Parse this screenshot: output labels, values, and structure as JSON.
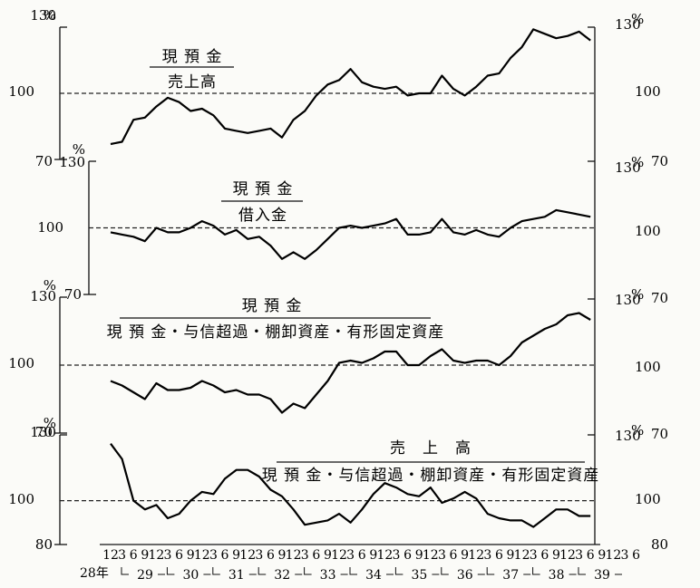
{
  "chart_data": {
    "type": "line",
    "x_labels": [
      "12",
      "3",
      "6",
      "9",
      "12",
      "3",
      "6",
      "9",
      "12",
      "3",
      "6",
      "9",
      "12",
      "3",
      "6",
      "9",
      "12",
      "3",
      "6",
      "9",
      "12",
      "3",
      "6",
      "9",
      "12",
      "3",
      "6",
      "9",
      "12",
      "3",
      "6",
      "9",
      "12",
      "3",
      "6",
      "9",
      "12",
      "3",
      "6",
      "9",
      "12",
      "3",
      "6",
      "9",
      "12",
      "3",
      "6"
    ],
    "year_labels": [
      "28年",
      "29",
      "30",
      "31",
      "32",
      "33",
      "34",
      "35",
      "36",
      "37",
      "38",
      "39"
    ],
    "panels": [
      {
        "id": "p1",
        "title_numerator": "現 預 金",
        "title_denominator": "売上高",
        "ylim": [
          70,
          130
        ],
        "y_ticks_left": [
          "130",
          "100",
          "70"
        ],
        "y_ticks_right": [
          "130",
          "100",
          "70"
        ],
        "unit": "%",
        "reference": 100,
        "values": [
          77,
          78,
          88,
          89,
          94,
          98,
          96,
          92,
          93,
          90,
          84,
          83,
          82,
          83,
          84,
          80,
          88,
          92,
          99,
          104,
          106,
          111,
          105,
          103,
          102,
          103,
          99,
          100,
          100,
          108,
          102,
          99,
          103,
          108,
          109,
          116,
          121,
          129,
          127,
          125,
          126,
          128,
          124
        ]
      },
      {
        "id": "p2",
        "title_numerator": "現 預 金",
        "title_denominator": "借入金",
        "ylim": [
          70,
          130
        ],
        "y_ticks_left": [
          "130",
          "100",
          "70"
        ],
        "y_ticks_right": [
          "130",
          "100",
          "70"
        ],
        "unit": "%",
        "reference": 100,
        "values": [
          98,
          97,
          96,
          94,
          100,
          98,
          98,
          100,
          103,
          101,
          97,
          99,
          95,
          96,
          92,
          86,
          89,
          86,
          90,
          95,
          100,
          101,
          100,
          101,
          102,
          104,
          97,
          97,
          98,
          104,
          98,
          97,
          99,
          97,
          96,
          100,
          103,
          104,
          105,
          108,
          107,
          106,
          105
        ]
      },
      {
        "id": "p3",
        "title_numerator": "現 預 金",
        "title_denominator": "現 預 金・与信超過・棚卸資産・有形固定資産",
        "ylim": [
          70,
          130
        ],
        "y_ticks_left": [
          "130",
          "100",
          "70"
        ],
        "y_ticks_right": [
          "130",
          "100",
          "70"
        ],
        "unit": "%",
        "reference": 100,
        "values": [
          93,
          91,
          88,
          85,
          92,
          89,
          89,
          90,
          93,
          91,
          88,
          89,
          87,
          87,
          85,
          79,
          83,
          81,
          87,
          93,
          101,
          102,
          101,
          103,
          106,
          106,
          100,
          100,
          104,
          107,
          102,
          101,
          102,
          102,
          100,
          104,
          110,
          113,
          116,
          118,
          122,
          123,
          120
        ]
      },
      {
        "id": "p4",
        "title_numerator": "売　上　高",
        "title_denominator": "現 預 金・与信超過・棚卸資産・有形固定資産",
        "ylim": [
          80,
          130
        ],
        "y_ticks_left": [
          "130",
          "100",
          "80"
        ],
        "y_ticks_right": [
          "130",
          "100",
          "80"
        ],
        "unit": "%",
        "reference": 100,
        "values": [
          126,
          119,
          100,
          96,
          98,
          92,
          94,
          100,
          104,
          103,
          110,
          114,
          114,
          111,
          105,
          102,
          96,
          89,
          90,
          91,
          94,
          90,
          96,
          103,
          108,
          106,
          103,
          102,
          106,
          99,
          101,
          104,
          101,
          94,
          92,
          91,
          91,
          88,
          92,
          96,
          96,
          93,
          93
        ]
      }
    ]
  }
}
